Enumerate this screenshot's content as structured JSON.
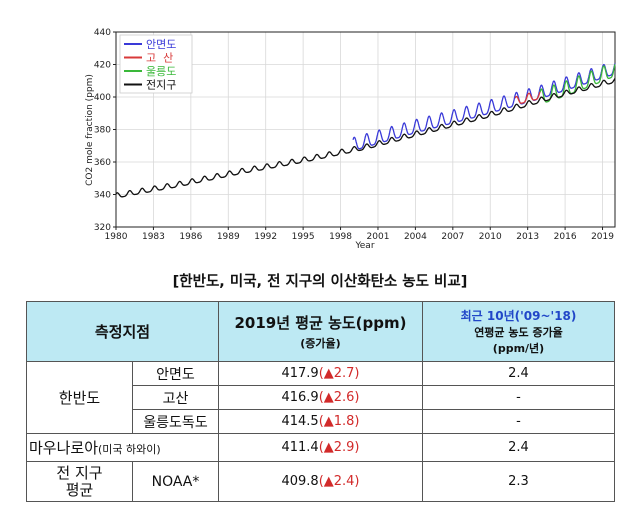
{
  "chart_data": {
    "type": "line",
    "xlabel": "Year",
    "ylabel": "CO2 mole fraction (ppm)",
    "xlim": [
      1980,
      2020
    ],
    "ylim": [
      320,
      440
    ],
    "x_ticks": [
      "1980",
      "1983",
      "1986",
      "1989",
      "1992",
      "1995",
      "1998",
      "2001",
      "2004",
      "2007",
      "2010",
      "2013",
      "2016",
      "2019"
    ],
    "y_ticks": [
      "320",
      "340",
      "360",
      "380",
      "400",
      "420",
      "440"
    ],
    "legend": [
      "안면도",
      "고  산",
      "울릉도",
      "전지구"
    ],
    "series": [
      {
        "name": "안면도",
        "color": "#3a3ad8",
        "start": 1999.0,
        "end": 2020.0,
        "x": [
          1999,
          2004,
          2009,
          2014,
          2019.9
        ],
        "y": [
          370,
          381,
          391,
          402,
          417
        ],
        "amplitude": 8
      },
      {
        "name": "고  산",
        "color": "#d83a3a",
        "start": 2012.0,
        "end": 2014.0,
        "x": [
          2012,
          2014
        ],
        "y": [
          397,
          401
        ],
        "amplitude": 5
      },
      {
        "name": "울릉도",
        "color": "#3ab83a",
        "start": 2014.0,
        "end": 2020.0,
        "x": [
          2014,
          2016,
          2018,
          2019.9
        ],
        "y": [
          399,
          404,
          410,
          416
        ],
        "amplitude": 9
      },
      {
        "name": "전지구",
        "color": "#111111",
        "start": 1980.0,
        "end": 2020.0,
        "x": [
          1980,
          1985,
          1990,
          1995,
          2000,
          2005,
          2010,
          2015,
          2019.9
        ],
        "y": [
          339,
          346,
          354,
          361,
          369,
          379,
          389,
          400,
          410
        ],
        "amplitude": 3
      }
    ]
  },
  "caption": "[한반도, 미국, 전 지구의 이산화탄소 농도 비교]",
  "table": {
    "header": {
      "site": "측정지점",
      "avg": "2019년 평균 농도(ppm)",
      "avg_sub": "(증가율)",
      "recent": "최근 10년('09~'18)",
      "recent_line2": "연평균 농도 증가율",
      "recent_line3": "(ppm/년)"
    },
    "group_korea": "한반도",
    "rows": [
      {
        "station": "안면도",
        "value": "417.9",
        "inc": "(▲2.7)",
        "rate": "2.4"
      },
      {
        "station": "고산",
        "value": "416.9",
        "inc": "(▲2.6)",
        "rate": "-"
      },
      {
        "station": "울릉도독도",
        "value": "414.5",
        "inc": "(▲1.8)",
        "rate": "-"
      }
    ],
    "mauna": {
      "label": "마우나로아",
      "paren": "(미국 하와이)",
      "value": "411.4",
      "inc": "(▲2.9)",
      "rate": "2.4"
    },
    "global": {
      "label1": "전 지구",
      "label2": "평균",
      "station": "NOAA*",
      "value": "409.8",
      "inc": "(▲2.4)",
      "rate": "2.3"
    }
  }
}
